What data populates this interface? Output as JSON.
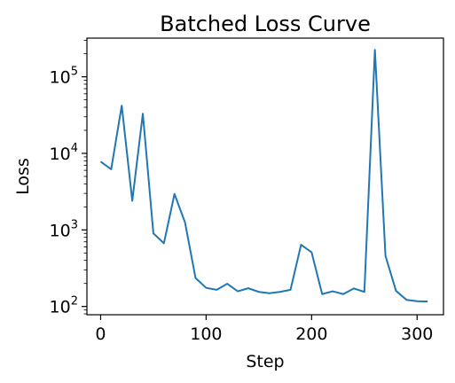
{
  "chart_data": {
    "type": "line",
    "title": "Batched Loss Curve",
    "xlabel": "Step",
    "ylabel": "Loss",
    "xlim": [
      -13,
      325
    ],
    "ylim": [
      78,
      320000
    ],
    "yscale": "log",
    "grid": false,
    "xticks": [
      {
        "value": 0,
        "label": "0"
      },
      {
        "value": 100,
        "label": "100"
      },
      {
        "value": 200,
        "label": "200"
      },
      {
        "value": 300,
        "label": "300"
      }
    ],
    "yticks": [
      {
        "value": 100,
        "base": "10",
        "exp": "2"
      },
      {
        "value": 1000,
        "base": "10",
        "exp": "3"
      },
      {
        "value": 10000,
        "base": "10",
        "exp": "4"
      },
      {
        "value": 100000,
        "base": "10",
        "exp": "5"
      }
    ],
    "series": [
      {
        "color": "#1f77b4",
        "x": [
          0,
          10,
          20,
          30,
          40,
          50,
          60,
          70,
          80,
          90,
          100,
          110,
          120,
          130,
          140,
          150,
          160,
          170,
          180,
          190,
          200,
          210,
          220,
          230,
          240,
          250,
          260,
          270,
          280,
          290,
          300,
          310
        ],
        "y": [
          7800,
          6200,
          42000,
          2400,
          33000,
          900,
          670,
          2950,
          1250,
          235,
          175,
          165,
          198,
          158,
          173,
          155,
          149,
          155,
          165,
          640,
          510,
          145,
          158,
          145,
          172,
          155,
          225000,
          460,
          160,
          122,
          117,
          116
        ]
      }
    ]
  }
}
